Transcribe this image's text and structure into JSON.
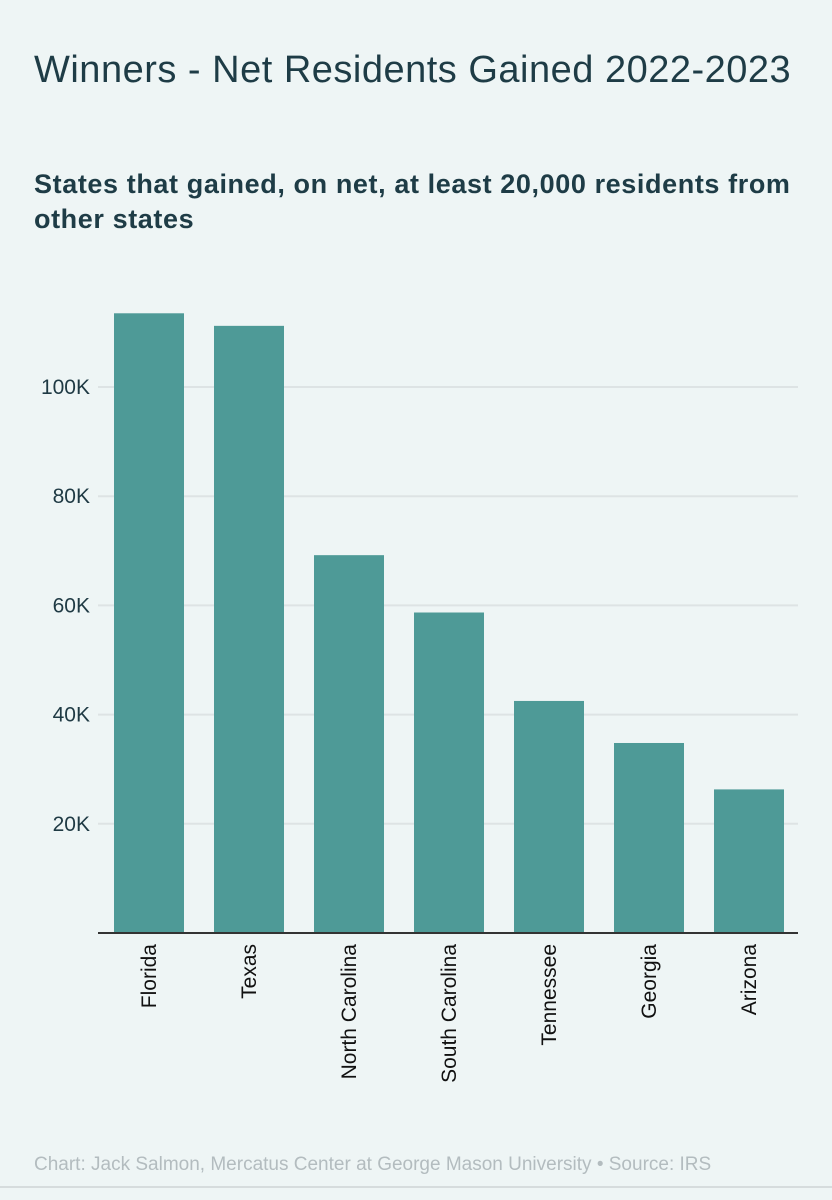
{
  "chart_data": {
    "type": "bar",
    "title": "Winners - Net Residents Gained 2022-2023",
    "subtitle": "States that gained, on net, at least 20,000 residents from other states",
    "categories": [
      "Florida",
      "Texas",
      "North Carolina",
      "South Carolina",
      "Tennessee",
      "Georgia",
      "Arizona"
    ],
    "values": [
      113500,
      111200,
      69200,
      58700,
      42500,
      34800,
      26300
    ],
    "ylim": [
      0,
      120000
    ],
    "yticks": [
      20000,
      40000,
      60000,
      80000,
      100000
    ],
    "ytick_labels": [
      "20K",
      "40K",
      "60K",
      "80K",
      "100K"
    ],
    "xlabel": "",
    "ylabel": "",
    "grid": true,
    "bar_color": "#4e9a97"
  },
  "footer": {
    "credit": "Chart: Jack Salmon, Mercatus Center at George Mason University • Source: IRS"
  }
}
